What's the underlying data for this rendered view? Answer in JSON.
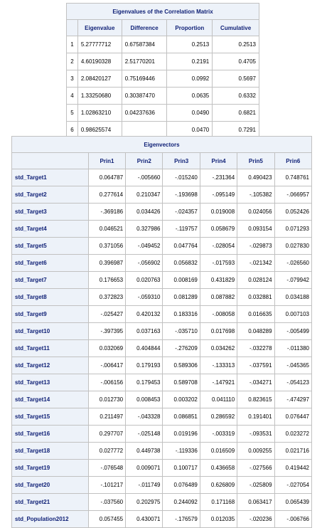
{
  "eigenvalues": {
    "caption": "Eigenvalues of the Correlation Matrix",
    "headers": [
      "Eigenvalue",
      "Difference",
      "Proportion",
      "Cumulative"
    ],
    "rows": [
      {
        "n": "1",
        "eigenvalue": "5.27777712",
        "difference": "0.67587384",
        "proportion": "0.2513",
        "cumulative": "0.2513"
      },
      {
        "n": "2",
        "eigenvalue": "4.60190328",
        "difference": "2.51770201",
        "proportion": "0.2191",
        "cumulative": "0.4705"
      },
      {
        "n": "3",
        "eigenvalue": "2.08420127",
        "difference": "0.75169446",
        "proportion": "0.0992",
        "cumulative": "0.5697"
      },
      {
        "n": "4",
        "eigenvalue": "1.33250680",
        "difference": "0.30387470",
        "proportion": "0.0635",
        "cumulative": "0.6332"
      },
      {
        "n": "5",
        "eigenvalue": "1.02863210",
        "difference": "0.04237636",
        "proportion": "0.0490",
        "cumulative": "0.6821"
      },
      {
        "n": "6",
        "eigenvalue": "0.98625574",
        "difference": "",
        "proportion": "0.0470",
        "cumulative": "0.7291"
      }
    ]
  },
  "eigenvectors": {
    "caption": "Eigenvectors",
    "headers": [
      "Prin1",
      "Prin2",
      "Prin3",
      "Prin4",
      "Prin5",
      "Prin6"
    ],
    "rows": [
      {
        "name": "std_Target1",
        "values": [
          "0.064787",
          "-.005660",
          "-.015240",
          "-.231364",
          "0.490423",
          "0.748761"
        ]
      },
      {
        "name": "std_Target2",
        "values": [
          "0.277614",
          "0.210347",
          "-.193698",
          "-.095149",
          "-.105382",
          "-.066957"
        ]
      },
      {
        "name": "std_Target3",
        "values": [
          "-.369186",
          "0.034426",
          "-.024357",
          "0.019008",
          "0.024056",
          "0.052426"
        ]
      },
      {
        "name": "std_Target4",
        "values": [
          "0.046521",
          "0.327986",
          "-.119757",
          "0.058679",
          "0.093154",
          "0.071293"
        ]
      },
      {
        "name": "std_Target5",
        "values": [
          "0.371056",
          "-.049452",
          "0.047764",
          "-.028054",
          "-.029873",
          "0.027830"
        ]
      },
      {
        "name": "std_Target6",
        "values": [
          "0.396987",
          "-.056902",
          "0.056832",
          "-.017593",
          "-.021342",
          "-.026560"
        ]
      },
      {
        "name": "std_Target7",
        "values": [
          "0.176653",
          "0.020763",
          "0.008169",
          "0.431829",
          "0.028124",
          "-.079942"
        ]
      },
      {
        "name": "std_Target8",
        "values": [
          "0.372823",
          "-.059310",
          "0.081289",
          "0.087882",
          "0.032881",
          "0.034188"
        ]
      },
      {
        "name": "std_Target9",
        "values": [
          "-.025427",
          "0.420132",
          "0.183316",
          "-.008058",
          "0.016635",
          "0.007103"
        ]
      },
      {
        "name": "std_Target10",
        "values": [
          "-.397395",
          "0.037163",
          "-.035710",
          "0.017698",
          "0.048289",
          "-.005499"
        ]
      },
      {
        "name": "std_Target11",
        "values": [
          "0.032069",
          "0.404844",
          "-.276209",
          "0.034262",
          "-.032278",
          "-.011380"
        ]
      },
      {
        "name": "std_Target12",
        "values": [
          "-.006417",
          "0.179193",
          "0.589306",
          "-.133313",
          "-.037591",
          "-.045365"
        ]
      },
      {
        "name": "std_Target13",
        "values": [
          "-.006156",
          "0.179453",
          "0.589708",
          "-.147921",
          "-.034271",
          "-.054123"
        ]
      },
      {
        "name": "std_Target14",
        "values": [
          "0.012730",
          "0.008453",
          "0.003202",
          "0.041110",
          "0.823615",
          "-.474297"
        ]
      },
      {
        "name": "std_Target15",
        "values": [
          "0.211497",
          "-.043328",
          "0.086851",
          "0.286592",
          "0.191401",
          "0.076447"
        ]
      },
      {
        "name": "std_Target16",
        "values": [
          "0.297707",
          "-.025148",
          "0.019196",
          "-.003319",
          "-.093531",
          "0.023272"
        ]
      },
      {
        "name": "std_Target18",
        "values": [
          "0.027772",
          "0.449738",
          "-.119336",
          "0.016509",
          "0.009255",
          "0.021716"
        ]
      },
      {
        "name": "std_Target19",
        "values": [
          "-.076548",
          "0.009071",
          "0.100717",
          "0.436658",
          "-.027566",
          "0.419442"
        ]
      },
      {
        "name": "std_Target20",
        "values": [
          "-.101217",
          "-.011749",
          "0.076489",
          "0.626809",
          "-.025809",
          "-.027054"
        ]
      },
      {
        "name": "std_Target21",
        "values": [
          "-.037560",
          "0.202975",
          "0.244092",
          "0.171168",
          "0.063417",
          "0.065439"
        ]
      },
      {
        "name": "std_Population2012",
        "values": [
          "0.057455",
          "0.430071",
          "-.176579",
          "0.012035",
          "-.020236",
          "-.006766"
        ]
      }
    ]
  }
}
